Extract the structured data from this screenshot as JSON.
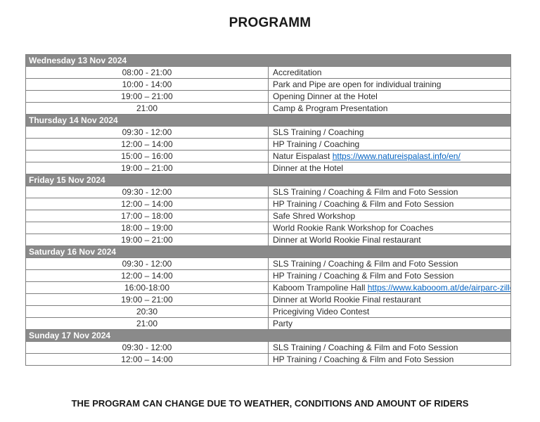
{
  "page": {
    "title": "PROGRAMM",
    "footer": "THE PROGRAM CAN CHANGE DUE TO WEATHER, CONDITIONS AND AMOUNT OF RIDERS"
  },
  "colors": {
    "day_header_bg": "#8a8a8a",
    "day_header_text": "#ffffff",
    "grid_border": "#7f7f7f",
    "link": "#0563c1",
    "body_text": "#2b2b2b"
  },
  "schedule": {
    "columns": [
      "time",
      "activity"
    ],
    "days": [
      {
        "label": "Wednesday 13 Nov 2024",
        "events": [
          {
            "time": "08:00 - 21:00",
            "activity": "Accreditation"
          },
          {
            "time": "10:00 - 14:00",
            "activity": "Park and Pipe are open for individual training"
          },
          {
            "time": "19:00 – 21:00",
            "activity": "Opening Dinner at the Hotel"
          },
          {
            "time": "21:00",
            "activity": "Camp & Program Presentation"
          }
        ]
      },
      {
        "label": "Thursday 14 Nov 2024",
        "events": [
          {
            "time": "09:30 - 12:00",
            "activity": "SLS Training / Coaching"
          },
          {
            "time": "12:00 – 14:00",
            "activity": "HP Training / Coaching"
          },
          {
            "time": "15:00 – 16:00",
            "activity": "Natur Eispalast",
            "link": "https://www.natureispalast.info/en/"
          },
          {
            "time": "19:00 – 21:00",
            "activity": "Dinner at the Hotel"
          }
        ]
      },
      {
        "label": "Friday 15 Nov 2024",
        "events": [
          {
            "time": "09:30 - 12:00",
            "activity": "SLS Training / Coaching & Film and Foto Session"
          },
          {
            "time": "12:00 – 14:00",
            "activity": "HP Training / Coaching & Film and Foto Session"
          },
          {
            "time": "17:00 – 18:00",
            "activity": "Safe Shred Workshop"
          },
          {
            "time": "18:00 – 19:00",
            "activity": "World Rookie Rank Workshop for Coaches"
          },
          {
            "time": "19:00 – 21:00",
            "activity": "Dinner at World Rookie Final restaurant"
          }
        ]
      },
      {
        "label": "Saturday 16 Nov 2024",
        "events": [
          {
            "time": "09:30 - 12:00",
            "activity": "SLS Training / Coaching & Film and Foto Session"
          },
          {
            "time": "12:00 – 14:00",
            "activity": "HP Training / Coaching & Film and Foto Session"
          },
          {
            "time": "16:00-18:00",
            "activity": "Kaboom Trampoline Hall",
            "link": "https://www.kabooom.at/de/airparc-zillertal-trampolinanlage-zillertal"
          },
          {
            "time": "19:00 – 21:00",
            "activity": "Dinner at World Rookie Final restaurant"
          },
          {
            "time": "20:30",
            "activity": "Pricegiving Video Contest"
          },
          {
            "time": "21:00",
            "activity": "Party"
          }
        ]
      },
      {
        "label": "Sunday 17 Nov 2024",
        "events": [
          {
            "time": "09:30 - 12:00",
            "activity": "SLS Training / Coaching & Film and Foto Session"
          },
          {
            "time": "12:00 – 14:00",
            "activity": "HP Training / Coaching & Film and Foto Session"
          }
        ]
      }
    ]
  }
}
